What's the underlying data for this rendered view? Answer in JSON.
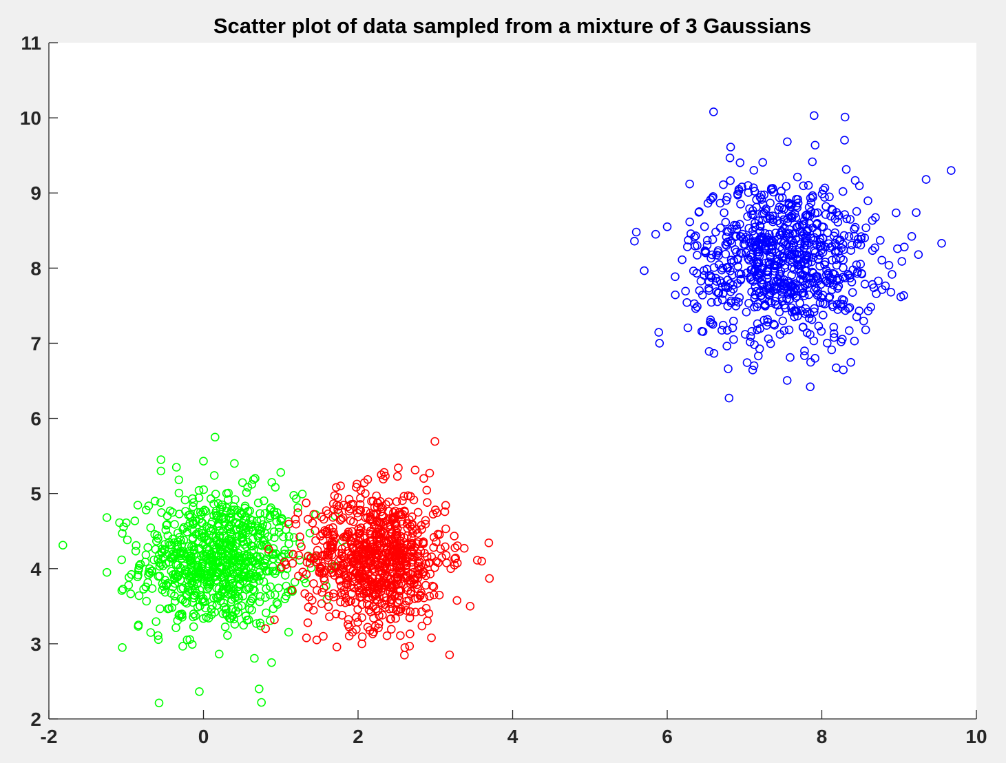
{
  "chart_data": {
    "type": "scatter",
    "title": "Scatter plot of data sampled from a mixture of 3 Gaussians",
    "xlabel": "",
    "ylabel": "",
    "xlim": [
      -2,
      10
    ],
    "ylim": [
      2,
      11
    ],
    "x_ticks": [
      -2,
      0,
      2,
      4,
      6,
      8,
      10
    ],
    "y_ticks": [
      2,
      3,
      4,
      5,
      6,
      7,
      8,
      9,
      10,
      11
    ],
    "marker": "open-circle",
    "grid": false,
    "legend": "none",
    "background": "#f0f0f0",
    "plot_background": "#ffffff",
    "series": [
      {
        "color": "#00ff00",
        "distribution": {
          "mean": [
            0.2,
            4.1
          ],
          "std": [
            0.5,
            0.45
          ],
          "count": 800
        },
        "x": [
          0.15,
          0.75,
          0.72,
          -0.55,
          -0.55,
          -0.35,
          0.0,
          0.4,
          -1.25,
          -1.05,
          -1.25,
          -1.05,
          1.45,
          1.8,
          1.0,
          1.2,
          0.35,
          -0.1
        ],
        "y": [
          5.75,
          2.22,
          2.4,
          5.45,
          5.3,
          5.35,
          5.43,
          5.4,
          4.68,
          2.95,
          3.95,
          4.47,
          4.72,
          4.37,
          5.28,
          4.93,
          4.1,
          3.9
        ]
      },
      {
        "color": "#ff0000",
        "distribution": {
          "mean": [
            2.25,
            4.15
          ],
          "std": [
            0.45,
            0.45
          ],
          "count": 800
        },
        "x": [
          2.6,
          3.7,
          3.45,
          3.6,
          2.95,
          2.05,
          1.55,
          2.85,
          2.3,
          3.2,
          1.35,
          2.1
        ],
        "y": [
          2.85,
          3.87,
          3.5,
          4.1,
          3.08,
          3.0,
          3.1,
          5.2,
          5.25,
          4.0,
          3.28,
          4.2
        ]
      },
      {
        "color": "#0000ff",
        "distribution": {
          "mean": [
            7.5,
            8.1
          ],
          "std": [
            0.6,
            0.55
          ],
          "count": 800
        },
        "x": [
          6.6,
          7.9,
          8.3,
          5.6,
          5.85,
          6.0,
          9.55,
          9.35,
          6.8,
          7.85,
          5.9,
          9.25,
          7.5
        ],
        "y": [
          10.08,
          10.03,
          10.01,
          8.48,
          8.45,
          8.55,
          8.33,
          9.18,
          6.27,
          6.42,
          7.0,
          8.18,
          8.1
        ]
      }
    ]
  }
}
